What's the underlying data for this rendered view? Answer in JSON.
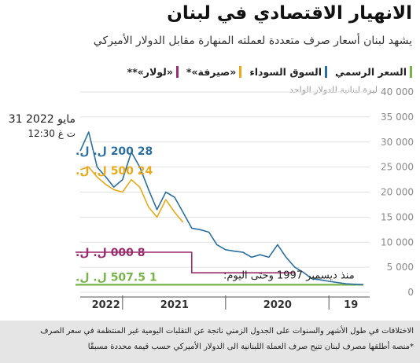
{
  "title": "الانهيار الاقتصادي في لبنان",
  "subtitle": "يشهد لبنان أسعار صرف متعددة لعملته المنهارة مقابل الدولار الأميركي",
  "legend": [
    {
      "label": "السعر الرسمي",
      "color": "#78b34a"
    },
    {
      "label": "السوق السوداء",
      "color": "#2a6fa0"
    },
    {
      "label": "«صيرفة»*",
      "color": "#e9a91a"
    },
    {
      "label": "«لولار»**",
      "color": "#9b2d6e"
    }
  ],
  "footer": {
    "note1": "الاختلافات في طول الأشهر والسنوات على الجدول الزمني ناتجة عن التقلبات اليومية غير المنتظمة في سعر الصرف",
    "note2": "*منصة أطلقها مصرف لبنان تتيح صرف العملة اللبنانية الى الدولار الأميركي حسب قيمة محددة مسبقًا"
  },
  "chart_data": {
    "type": "line",
    "title": "الانهيار الاقتصادي في لبنان",
    "subtitle": "يشهد لبنان أسعار صرف متعددة لعملته المنهارة مقابل الدولار الأميركي",
    "ylabel": "ليرة لبنانية للدولار الواحد",
    "ylim": [
      0,
      40000
    ],
    "yticks": [
      0,
      5000,
      10000,
      15000,
      20000,
      25000,
      30000,
      35000,
      40000
    ],
    "ytick_labels": [
      "0",
      "5 000",
      "10 000",
      "15 000",
      "20 000",
      "25 000",
      "30 000",
      "35 000",
      "40 000"
    ],
    "x_axis_labels": [
      "2022",
      "2021",
      "2020",
      "19"
    ],
    "x_direction": "right-to-left (time runs from right to left)",
    "grid": true,
    "legend_position": "top",
    "annotations": {
      "date_line1": "31 مايو 2022",
      "date_line2": "12:30 ت غ",
      "black_market_value": "28 200 ل. ل.",
      "sayrafa_value": "24 500 ل. ل.",
      "lollar_value": "8 000 ل. ل.",
      "official_value": "1 507.5 ل. ل.",
      "official_since": "منذ ديسمبر 1997 وحتى اليوم:"
    },
    "series": [
      {
        "name": "السوق السوداء",
        "color": "#2a6fa0",
        "x": [
          "2019-09",
          "2019-11",
          "2020-01",
          "2020-02",
          "2020-03",
          "2020-04",
          "2020-05",
          "2020-06",
          "2020-07",
          "2020-08",
          "2020-09",
          "2020-10",
          "2020-11",
          "2020-12",
          "2021-01",
          "2021-02",
          "2021-03",
          "2021-04",
          "2021-05",
          "2021-06",
          "2021-07",
          "2021-08",
          "2021-09",
          "2021-10",
          "2021-11",
          "2021-12",
          "2022-01",
          "2022-02",
          "2022-03",
          "2022-04",
          "2022-05",
          "2022-05-31"
        ],
        "values": [
          1500,
          1700,
          2200,
          2500,
          2700,
          4000,
          5000,
          7000,
          9500,
          7000,
          7500,
          7000,
          8000,
          8200,
          8500,
          9500,
          12000,
          12500,
          12800,
          16000,
          19000,
          20000,
          16500,
          20500,
          25000,
          28000,
          22500,
          21000,
          23000,
          25000,
          32000,
          28200
        ]
      },
      {
        "name": "«صيرفة»*",
        "color": "#e9a91a",
        "x": [
          "2021-06",
          "2021-07",
          "2021-08",
          "2021-09",
          "2021-10",
          "2021-11",
          "2021-12",
          "2022-01",
          "2022-02",
          "2022-03",
          "2022-04",
          "2022-05",
          "2022-05-31"
        ],
        "values": [
          14000,
          16000,
          18500,
          15000,
          17000,
          21000,
          22500,
          20000,
          20500,
          21500,
          23000,
          25000,
          24500
        ]
      },
      {
        "name": "«لولار»**",
        "color": "#9b2d6e",
        "x": [
          "2020-05",
          "2021-04",
          "2021-05",
          "2022-05-31"
        ],
        "values": [
          3900,
          3900,
          8000,
          8000
        ]
      },
      {
        "name": "السعر الرسمي",
        "color": "#78b34a",
        "x": [
          "2019-09",
          "2022-05-31"
        ],
        "values": [
          1507.5,
          1507.5
        ]
      }
    ]
  }
}
